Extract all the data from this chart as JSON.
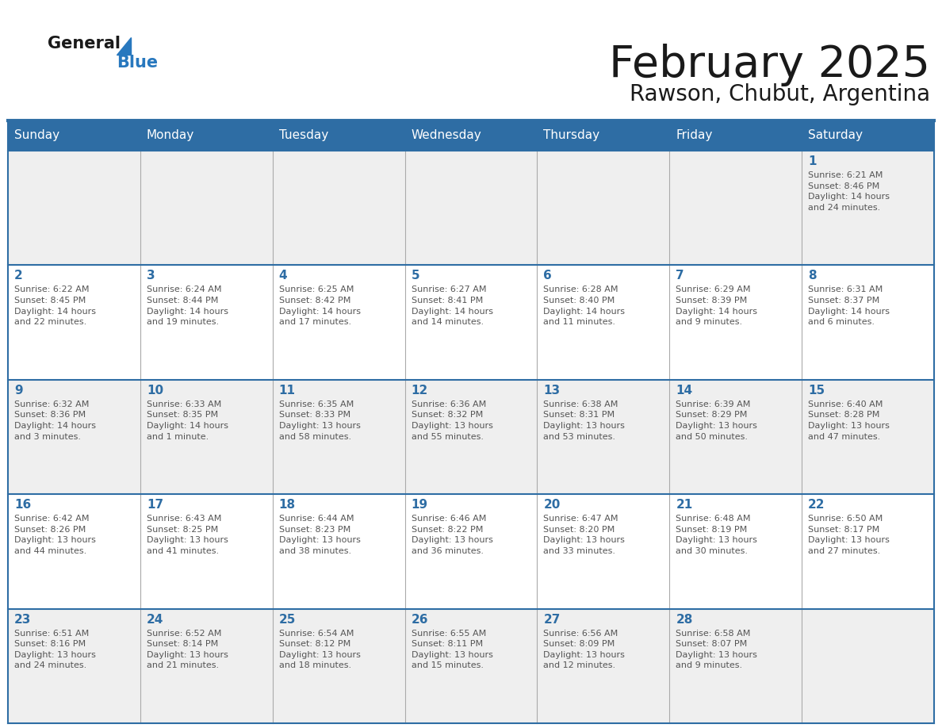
{
  "title": "February 2025",
  "subtitle": "Rawson, Chubut, Argentina",
  "header_bg": "#2E6DA4",
  "header_text_color": "#FFFFFF",
  "cell_bg_odd": "#EFEFEF",
  "cell_bg_even": "#FFFFFF",
  "border_color": "#2E6DA4",
  "separator_color": "#AAAAAA",
  "day_names": [
    "Sunday",
    "Monday",
    "Tuesday",
    "Wednesday",
    "Thursday",
    "Friday",
    "Saturday"
  ],
  "title_color": "#1a1a1a",
  "subtitle_color": "#1a1a1a",
  "day_number_color": "#2E6DA4",
  "cell_text_color": "#555555",
  "logo_general_color": "#1a1a1a",
  "logo_blue_color": "#2878BE",
  "logo_triangle_color": "#2878BE",
  "weeks": [
    [
      {
        "day": "",
        "info": ""
      },
      {
        "day": "",
        "info": ""
      },
      {
        "day": "",
        "info": ""
      },
      {
        "day": "",
        "info": ""
      },
      {
        "day": "",
        "info": ""
      },
      {
        "day": "",
        "info": ""
      },
      {
        "day": "1",
        "info": "Sunrise: 6:21 AM\nSunset: 8:46 PM\nDaylight: 14 hours\nand 24 minutes."
      }
    ],
    [
      {
        "day": "2",
        "info": "Sunrise: 6:22 AM\nSunset: 8:45 PM\nDaylight: 14 hours\nand 22 minutes."
      },
      {
        "day": "3",
        "info": "Sunrise: 6:24 AM\nSunset: 8:44 PM\nDaylight: 14 hours\nand 19 minutes."
      },
      {
        "day": "4",
        "info": "Sunrise: 6:25 AM\nSunset: 8:42 PM\nDaylight: 14 hours\nand 17 minutes."
      },
      {
        "day": "5",
        "info": "Sunrise: 6:27 AM\nSunset: 8:41 PM\nDaylight: 14 hours\nand 14 minutes."
      },
      {
        "day": "6",
        "info": "Sunrise: 6:28 AM\nSunset: 8:40 PM\nDaylight: 14 hours\nand 11 minutes."
      },
      {
        "day": "7",
        "info": "Sunrise: 6:29 AM\nSunset: 8:39 PM\nDaylight: 14 hours\nand 9 minutes."
      },
      {
        "day": "8",
        "info": "Sunrise: 6:31 AM\nSunset: 8:37 PM\nDaylight: 14 hours\nand 6 minutes."
      }
    ],
    [
      {
        "day": "9",
        "info": "Sunrise: 6:32 AM\nSunset: 8:36 PM\nDaylight: 14 hours\nand 3 minutes."
      },
      {
        "day": "10",
        "info": "Sunrise: 6:33 AM\nSunset: 8:35 PM\nDaylight: 14 hours\nand 1 minute."
      },
      {
        "day": "11",
        "info": "Sunrise: 6:35 AM\nSunset: 8:33 PM\nDaylight: 13 hours\nand 58 minutes."
      },
      {
        "day": "12",
        "info": "Sunrise: 6:36 AM\nSunset: 8:32 PM\nDaylight: 13 hours\nand 55 minutes."
      },
      {
        "day": "13",
        "info": "Sunrise: 6:38 AM\nSunset: 8:31 PM\nDaylight: 13 hours\nand 53 minutes."
      },
      {
        "day": "14",
        "info": "Sunrise: 6:39 AM\nSunset: 8:29 PM\nDaylight: 13 hours\nand 50 minutes."
      },
      {
        "day": "15",
        "info": "Sunrise: 6:40 AM\nSunset: 8:28 PM\nDaylight: 13 hours\nand 47 minutes."
      }
    ],
    [
      {
        "day": "16",
        "info": "Sunrise: 6:42 AM\nSunset: 8:26 PM\nDaylight: 13 hours\nand 44 minutes."
      },
      {
        "day": "17",
        "info": "Sunrise: 6:43 AM\nSunset: 8:25 PM\nDaylight: 13 hours\nand 41 minutes."
      },
      {
        "day": "18",
        "info": "Sunrise: 6:44 AM\nSunset: 8:23 PM\nDaylight: 13 hours\nand 38 minutes."
      },
      {
        "day": "19",
        "info": "Sunrise: 6:46 AM\nSunset: 8:22 PM\nDaylight: 13 hours\nand 36 minutes."
      },
      {
        "day": "20",
        "info": "Sunrise: 6:47 AM\nSunset: 8:20 PM\nDaylight: 13 hours\nand 33 minutes."
      },
      {
        "day": "21",
        "info": "Sunrise: 6:48 AM\nSunset: 8:19 PM\nDaylight: 13 hours\nand 30 minutes."
      },
      {
        "day": "22",
        "info": "Sunrise: 6:50 AM\nSunset: 8:17 PM\nDaylight: 13 hours\nand 27 minutes."
      }
    ],
    [
      {
        "day": "23",
        "info": "Sunrise: 6:51 AM\nSunset: 8:16 PM\nDaylight: 13 hours\nand 24 minutes."
      },
      {
        "day": "24",
        "info": "Sunrise: 6:52 AM\nSunset: 8:14 PM\nDaylight: 13 hours\nand 21 minutes."
      },
      {
        "day": "25",
        "info": "Sunrise: 6:54 AM\nSunset: 8:12 PM\nDaylight: 13 hours\nand 18 minutes."
      },
      {
        "day": "26",
        "info": "Sunrise: 6:55 AM\nSunset: 8:11 PM\nDaylight: 13 hours\nand 15 minutes."
      },
      {
        "day": "27",
        "info": "Sunrise: 6:56 AM\nSunset: 8:09 PM\nDaylight: 13 hours\nand 12 minutes."
      },
      {
        "day": "28",
        "info": "Sunrise: 6:58 AM\nSunset: 8:07 PM\nDaylight: 13 hours\nand 9 minutes."
      },
      {
        "day": "",
        "info": ""
      }
    ]
  ]
}
